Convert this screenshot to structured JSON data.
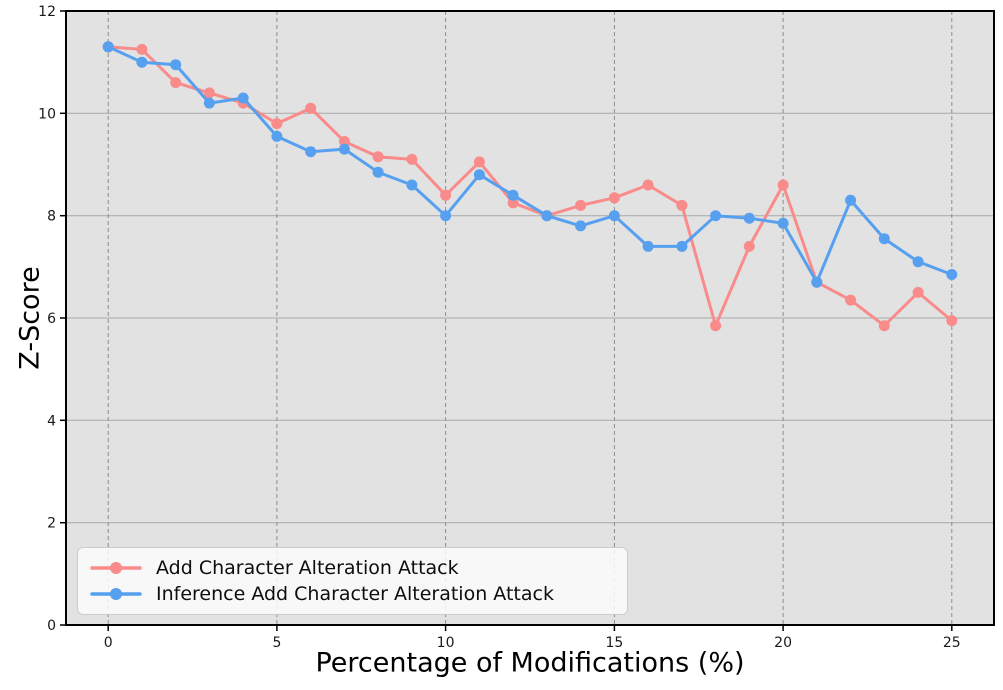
{
  "chart_data": {
    "type": "line",
    "title": "",
    "xlabel": "Percentage of Modifications (%)",
    "ylabel": "Z-Score",
    "xlim": [
      -1.25,
      26.25
    ],
    "ylim": [
      0,
      12
    ],
    "x_ticks": [
      0,
      5,
      10,
      15,
      20,
      25
    ],
    "y_ticks": [
      0,
      2,
      4,
      6,
      8,
      10,
      12
    ],
    "grid": {
      "horizontal_style": "solid",
      "vertical_style": "dashed",
      "horizontal_color": "#a8a8a8",
      "vertical_color": "#8d8d8d"
    },
    "legend_position": "lower-left",
    "x": [
      0,
      1,
      2,
      3,
      4,
      5,
      6,
      7,
      8,
      9,
      10,
      11,
      12,
      13,
      14,
      15,
      16,
      17,
      18,
      19,
      20,
      21,
      22,
      23,
      24,
      25
    ],
    "series": [
      {
        "name": "Add Character Alteration Attack",
        "color": "#F98B8B",
        "values": [
          11.3,
          11.25,
          10.6,
          10.4,
          10.2,
          9.8,
          10.1,
          9.45,
          9.15,
          9.1,
          8.4,
          9.05,
          8.25,
          8.0,
          8.2,
          8.35,
          8.6,
          8.2,
          5.85,
          7.4,
          8.6,
          6.7,
          6.35,
          5.85,
          6.5,
          5.95
        ]
      },
      {
        "name": "Inference Add Character Alteration Attack",
        "color": "#57A0F0",
        "values": [
          11.3,
          11.0,
          10.95,
          10.2,
          10.3,
          9.55,
          9.25,
          9.3,
          8.85,
          8.6,
          8.0,
          8.8,
          8.4,
          8.0,
          7.8,
          8.0,
          7.4,
          7.4,
          8.0,
          7.95,
          7.85,
          6.7,
          8.3,
          7.55,
          7.1,
          6.85
        ]
      }
    ],
    "plot_background": "#e2e2e2",
    "spine_color": "#000000",
    "tick_label_color": "#1a1a1a"
  }
}
